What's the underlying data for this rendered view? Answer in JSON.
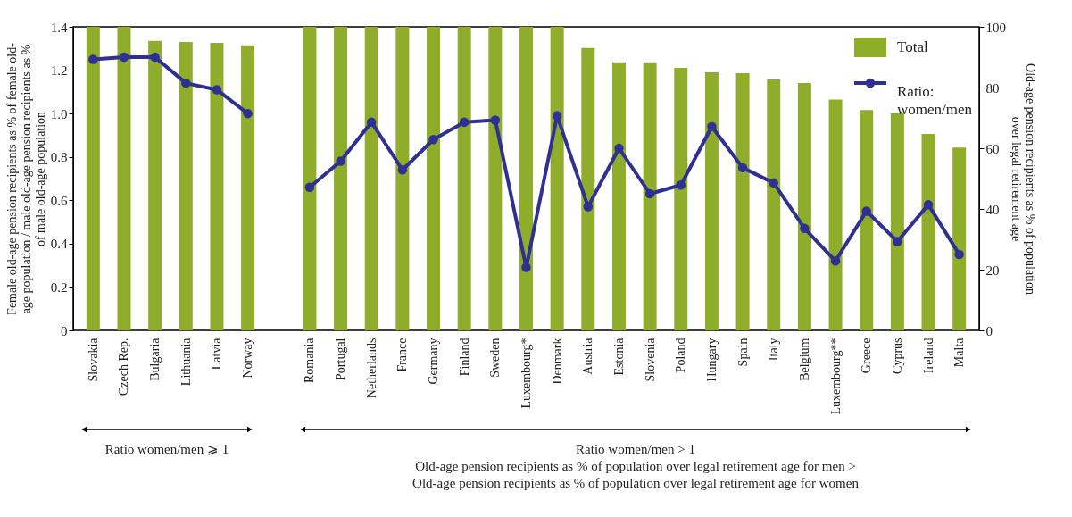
{
  "chart_data": {
    "type": "bar",
    "categories": [
      "Slovakia",
      "Czech Rep.",
      "Bulgaria",
      "Lithuania",
      "Latvia",
      "Norway",
      null,
      "Romania",
      "Portugal",
      "Netherlands",
      "France",
      "Germany",
      "Finland",
      "Sweden",
      "Luxembourg*",
      "Denmark",
      "Austria",
      "Estonia",
      "Slovenia",
      "Poland",
      "Hungary",
      "Spain",
      "Italy",
      "Belgium",
      "Luxembourg**",
      "Greece",
      "Cyprus",
      "Ireland",
      "Malta"
    ],
    "series": [
      {
        "name": "Total",
        "axis": "y2",
        "color": "#8fad2b",
        "values": [
          100,
          100,
          95.4,
          95.0,
          94.7,
          93.9,
          null,
          100,
          100,
          100,
          100,
          100,
          100,
          100,
          100,
          100,
          93,
          88.3,
          88.3,
          86.5,
          85,
          84.7,
          82.7,
          81.5,
          76,
          72.6,
          71.5,
          64.7,
          60.2
        ]
      },
      {
        "name": "Ratio: women/men",
        "type": "line",
        "color": "#2e3192",
        "values": [
          1.25,
          1.26,
          1.26,
          1.14,
          1.11,
          1.0,
          null,
          0.66,
          0.78,
          0.96,
          0.74,
          0.88,
          0.96,
          0.97,
          0.29,
          0.99,
          0.57,
          0.84,
          0.63,
          0.67,
          0.94,
          0.75,
          0.68,
          0.47,
          0.32,
          0.55,
          0.41,
          0.58,
          0.35
        ]
      }
    ],
    "ylabel": "Female old-age pension recipients as % of female old-age population / male old-age pension recipients as % of male old-age population",
    "y2label": "Old-age pension recipients as % of population over legal retirement age",
    "ylim": [
      0,
      1.4
    ],
    "yticks": [
      {
        "value": 0,
        "label": "0"
      },
      {
        "value": 0.2,
        "label": "0.2"
      },
      {
        "value": 0.4,
        "label": "0.4"
      },
      {
        "value": 0.6,
        "label": "0.6"
      },
      {
        "value": 0.8,
        "label": "0.8"
      },
      {
        "value": 1,
        "label": "1.0"
      },
      {
        "value": 1.2,
        "label": "1.2"
      },
      {
        "value": 1.4,
        "label": "1.4"
      }
    ],
    "y2lim": [
      0,
      100
    ],
    "y2ticks": [
      0,
      20,
      40,
      60,
      80,
      100
    ],
    "marker": "circle",
    "grid": false,
    "legend": "top right",
    "annotations": [
      "Ratio women/men ⩾ 1",
      "Ratio women/men > 1",
      "Old-age pension recipients as % of  population over legal retirement age for men >",
      "Old-age pension recipients as % of population over legal retirement age for women"
    ]
  }
}
